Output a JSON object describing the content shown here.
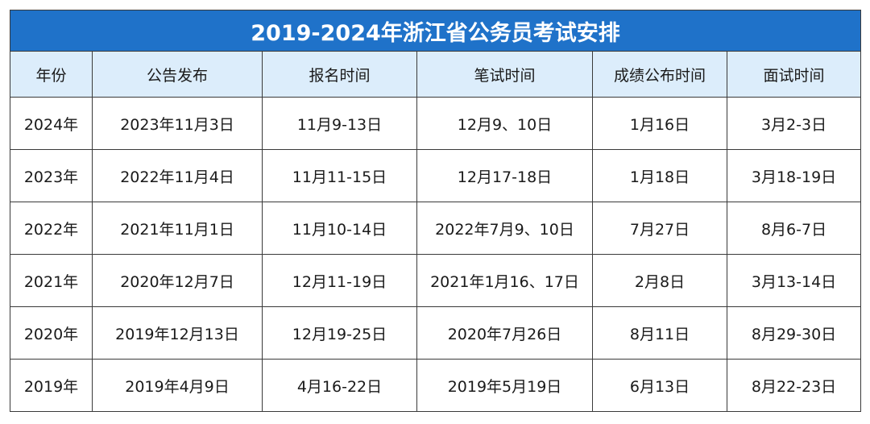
{
  "table": {
    "title": "2019-2024年浙江省公务员考试安排",
    "header": [
      "年份",
      "公告发布",
      "报名时间",
      "笔试时间",
      "成绩公布时间",
      "面试时间"
    ],
    "rows": [
      [
        "2024年",
        "2023年11月3日",
        "11月9-13日",
        "12月9、10日",
        "1月16日",
        "3月2-3日"
      ],
      [
        "2023年",
        "2022年11月4日",
        "11月11-15日",
        "12月17-18日",
        "1月18日",
        "3月18-19日"
      ],
      [
        "2022年",
        "2021年11月1日",
        "11月10-14日",
        "2022年7月9、10日",
        "7月27日",
        "8月6-7日"
      ],
      [
        "2021年",
        "2020年12月7日",
        "12月11-19日",
        "2021年1月16、17日",
        "2月8日",
        "3月13-14日"
      ],
      [
        "2020年",
        "2019年12月13日",
        "12月19-25日",
        "2020年7月26日",
        "8月11日",
        "8月29-30日"
      ],
      [
        "2019年",
        "2019年4月9日",
        "4月16-22日",
        "2019年5月19日",
        "6月13日",
        "8月22-23日"
      ]
    ]
  }
}
